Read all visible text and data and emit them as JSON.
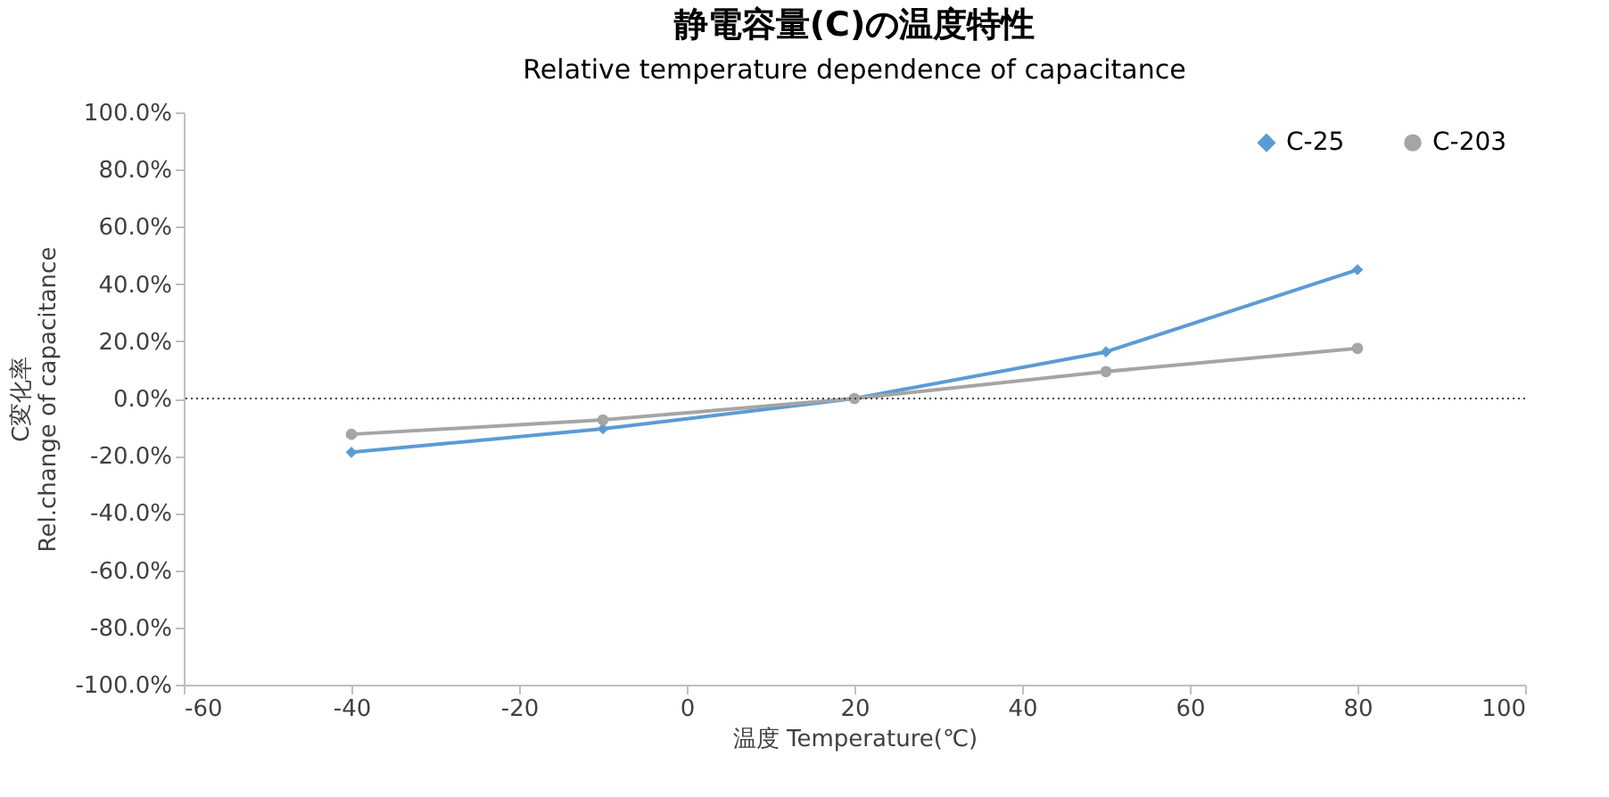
{
  "chart_data": {
    "type": "line",
    "title": "静電容量(C)の温度特性",
    "subtitle": "Relative temperature dependence of capacitance",
    "xlabel": "温度 Temperature(℃)",
    "ylabel": "C変化率\nRel.change of capacitance",
    "x": [
      -40,
      -10,
      20,
      50,
      80
    ],
    "series": [
      {
        "name": "C-25",
        "color": "#5b9bd5",
        "marker": "diamond",
        "values": [
          -18.8,
          -10.6,
          0,
          16.3,
          45
        ]
      },
      {
        "name": "C-203",
        "color": "#a5a5a5",
        "marker": "circle",
        "values": [
          -12.5,
          -7.5,
          0,
          9.4,
          17.5
        ]
      }
    ],
    "xlim": [
      -60,
      100
    ],
    "xticks": [
      -60,
      -40,
      -20,
      0,
      20,
      40,
      60,
      80,
      100
    ],
    "ylim": [
      -100,
      100
    ],
    "yticks": [
      {
        "value": -100,
        "label": "-100.0%"
      },
      {
        "value": -80,
        "label": "-80.0%"
      },
      {
        "value": -60,
        "label": "-60.0%"
      },
      {
        "value": -40,
        "label": "-40.0%"
      },
      {
        "value": -20,
        "label": "-20.0%"
      },
      {
        "value": 0,
        "label": "0.0%"
      },
      {
        "value": 20,
        "label": "20.0%"
      },
      {
        "value": 40,
        "label": "40.0%"
      },
      {
        "value": 60,
        "label": "60.0%"
      },
      {
        "value": 80,
        "label": "80.0%"
      },
      {
        "value": 100,
        "label": "100.0%"
      }
    ],
    "ref_lines": [
      {
        "axis": "y",
        "value": 0,
        "color": "#404040",
        "line_style": "dotted"
      }
    ],
    "grid": false,
    "legend": "top right",
    "line_style": "solid"
  }
}
